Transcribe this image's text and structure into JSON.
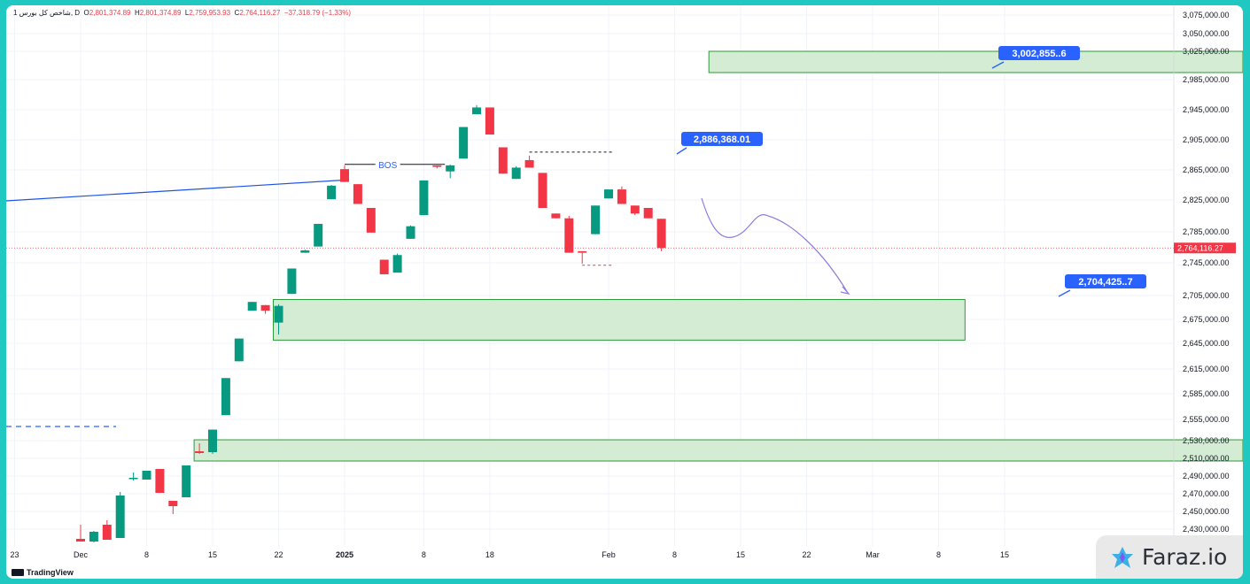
{
  "header": {
    "symbol": "1 شاخص کل بورس, D",
    "open_label": "O",
    "open": "2,801,374.89",
    "high_label": "H",
    "high": "2,801,374.89",
    "low_label": "L",
    "low": "2,759,953.93",
    "close_label": "C",
    "close": "2,764,116.27",
    "change": "−37,318.79 (−1.33%)"
  },
  "branding": {
    "tradingview": "TradingView",
    "faraz": "Faraz.io"
  },
  "colors": {
    "up": "#089981",
    "down": "#f23645",
    "zone_fill": "#d4ecd4",
    "zone_stroke": "#2e9a3a",
    "callout": "#2962ff",
    "projection": "#8f7ce0",
    "frame": "#1fc9c1"
  },
  "chart_data": {
    "type": "candlestick",
    "y_ticks": [
      "3,075,000.00",
      "3,050,000.00",
      "3,025,000.00",
      "2,985,000.00",
      "2,945,000.00",
      "2,905,000.00",
      "2,865,000.00",
      "2,825,000.00",
      "2,785,000.00",
      "2,745,000.00",
      "2,705,000.00",
      "2,675,000.00",
      "2,645,000.00",
      "2,615,000.00",
      "2,585,000.00",
      "2,555,000.00",
      "2,530,000.00",
      "2,510,000.00",
      "2,490,000.00",
      "2,470,000.00",
      "2,450,000.00",
      "2,430,000.00"
    ],
    "y_tick_values": [
      3075000,
      3050000,
      3025000,
      2985000,
      2945000,
      2905000,
      2865000,
      2825000,
      2785000,
      2745000,
      2705000,
      2675000,
      2645000,
      2615000,
      2585000,
      2555000,
      2530000,
      2510000,
      2490000,
      2470000,
      2450000,
      2430000
    ],
    "x_ticks": [
      {
        "label": "23",
        "i": -5
      },
      {
        "label": "Dec",
        "i": 0
      },
      {
        "label": "8",
        "i": 5
      },
      {
        "label": "15",
        "i": 10
      },
      {
        "label": "22",
        "i": 15
      },
      {
        "label": "2025",
        "i": 20
      },
      {
        "label": "8",
        "i": 26
      },
      {
        "label": "18",
        "i": 31
      },
      {
        "label": "Feb",
        "i": 40
      },
      {
        "label": "8",
        "i": 45
      },
      {
        "label": "15",
        "i": 50
      },
      {
        "label": "22",
        "i": 55
      },
      {
        "label": "Mar",
        "i": 60
      },
      {
        "label": "8",
        "i": 65
      },
      {
        "label": "15",
        "i": 70
      }
    ],
    "candles": [
      {
        "o": 2419000,
        "h": 2435000,
        "l": 2416000,
        "c": 2416000
      },
      {
        "o": 2416000,
        "h": 2428000,
        "l": 2415000,
        "c": 2427000
      },
      {
        "o": 2435000,
        "h": 2440000,
        "l": 2418000,
        "c": 2418000
      },
      {
        "o": 2420000,
        "h": 2472000,
        "l": 2420000,
        "c": 2468000
      },
      {
        "o": 2487000,
        "h": 2494000,
        "l": 2485000,
        "c": 2488000
      },
      {
        "o": 2486000,
        "h": 2496000,
        "l": 2486000,
        "c": 2496000
      },
      {
        "o": 2498000,
        "h": 2498000,
        "l": 2471000,
        "c": 2471000
      },
      {
        "o": 2462000,
        "h": 2462000,
        "l": 2447000,
        "c": 2456000
      },
      {
        "o": 2466000,
        "h": 2502000,
        "l": 2466000,
        "c": 2502000
      },
      {
        "o": 2518000,
        "h": 2527000,
        "l": 2515000,
        "c": 2516000
      },
      {
        "o": 2517000,
        "h": 2543000,
        "l": 2515000,
        "c": 2543000
      },
      {
        "o": 2560000,
        "h": 2604000,
        "l": 2560000,
        "c": 2604000
      },
      {
        "o": 2624000,
        "h": 2651000,
        "l": 2624000,
        "c": 2651000
      },
      {
        "o": 2686000,
        "h": 2697000,
        "l": 2686000,
        "c": 2697000
      },
      {
        "o": 2693000,
        "h": 2693000,
        "l": 2682000,
        "c": 2686000
      },
      {
        "o": 2671000,
        "h": 2694000,
        "l": 2656000,
        "c": 2692000
      },
      {
        "o": 2707000,
        "h": 2738000,
        "l": 2707000,
        "c": 2738000
      },
      {
        "o": 2758000,
        "h": 2762000,
        "l": 2758000,
        "c": 2761000
      },
      {
        "o": 2766000,
        "h": 2795000,
        "l": 2766000,
        "c": 2795000
      },
      {
        "o": 2826000,
        "h": 2845000,
        "l": 2826000,
        "c": 2844000
      },
      {
        "o": 2866000,
        "h": 2871000,
        "l": 2849000,
        "c": 2849000
      },
      {
        "o": 2846000,
        "h": 2846000,
        "l": 2820000,
        "c": 2820000
      },
      {
        "o": 2815000,
        "h": 2815000,
        "l": 2784000,
        "c": 2784000
      },
      {
        "o": 2749000,
        "h": 2749000,
        "l": 2731000,
        "c": 2731000
      },
      {
        "o": 2733000,
        "h": 2757000,
        "l": 2733000,
        "c": 2755000
      },
      {
        "o": 2776000,
        "h": 2793000,
        "l": 2776000,
        "c": 2792000
      },
      {
        "o": 2806000,
        "h": 2851000,
        "l": 2806000,
        "c": 2851000
      },
      {
        "o": 2871000,
        "h": 2871000,
        "l": 2867000,
        "c": 2869000
      },
      {
        "o": 2863000,
        "h": 2872000,
        "l": 2854000,
        "c": 2871000
      },
      {
        "o": 2880000,
        "h": 2922000,
        "l": 2880000,
        "c": 2922000
      },
      {
        "o": 2939000,
        "h": 2951000,
        "l": 2939000,
        "c": 2948000
      },
      {
        "o": 2948000,
        "h": 2948000,
        "l": 2912000,
        "c": 2912000
      },
      {
        "o": 2895000,
        "h": 2895000,
        "l": 2860000,
        "c": 2860000
      },
      {
        "o": 2853000,
        "h": 2870000,
        "l": 2853000,
        "c": 2868000
      },
      {
        "o": 2878000,
        "h": 2884000,
        "l": 2868000,
        "c": 2868000
      },
      {
        "o": 2861000,
        "h": 2861000,
        "l": 2815000,
        "c": 2815000
      },
      {
        "o": 2808000,
        "h": 2808000,
        "l": 2802000,
        "c": 2802000
      },
      {
        "o": 2802000,
        "h": 2805000,
        "l": 2758000,
        "c": 2758000
      },
      {
        "o": 2760000,
        "h": 2760000,
        "l": 2744000,
        "c": 2758000
      },
      {
        "o": 2782000,
        "h": 2818000,
        "l": 2782000,
        "c": 2818000
      },
      {
        "o": 2827000,
        "h": 2839000,
        "l": 2827000,
        "c": 2839000
      },
      {
        "o": 2839000,
        "h": 2843000,
        "l": 2820000,
        "c": 2820000
      },
      {
        "o": 2818000,
        "h": 2818000,
        "l": 2806000,
        "c": 2808000
      },
      {
        "o": 2815000,
        "h": 2815000,
        "l": 2802000,
        "c": 2802000
      },
      {
        "o": 2801374.89,
        "h": 2801374.89,
        "l": 2759953.93,
        "c": 2764116.27
      }
    ],
    "zones": [
      {
        "from_i": 48,
        "to_i": "end",
        "low": 2995000,
        "high": 3025000
      },
      {
        "from_i": 15,
        "to_i": 67,
        "low": 2649000,
        "high": 2700000
      },
      {
        "from_i": 9,
        "to_i": "end",
        "low": 2507000,
        "high": 2531000
      }
    ],
    "bos_label": "BOS",
    "bos_level": 2870000,
    "current_price": "2,764,116.27",
    "current_price_value": 2764116.27,
    "callouts": [
      "3,002,855..6",
      "2,886,368.01",
      "2,704,425..7"
    ],
    "callout_values": [
      3002855,
      2886368.01,
      2704425
    ]
  }
}
